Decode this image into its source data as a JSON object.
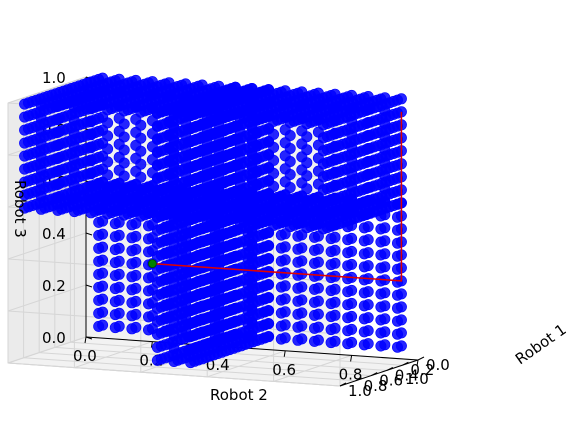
{
  "chart_data": {
    "type": "scatter3d",
    "axes": {
      "x": {
        "label": "Robot 1",
        "ticks": [
          "0.0",
          "0.2",
          "0.4",
          "0.6",
          "0.8",
          "1.0"
        ],
        "range": [
          0,
          1
        ]
      },
      "y": {
        "label": "Robot 2",
        "ticks": [
          "0.0",
          "0.2",
          "0.4",
          "0.6",
          "0.8",
          "1.0"
        ],
        "range": [
          0,
          1
        ]
      },
      "z": {
        "label": "Robot 3",
        "ticks": [
          "0.0",
          "0.2",
          "0.4",
          "0.6",
          "0.8",
          "1.0"
        ],
        "range": [
          0,
          1
        ]
      }
    },
    "grid": true,
    "obstacle_regions": [
      {
        "name": "",
        "color": "#0000ff",
        "r1": [
          0.0,
          1.0
        ],
        "r2": [
          0.05,
          0.95
        ],
        "r3": [
          0.6,
          1.0
        ]
      },
      {
        "name": "",
        "color": "#0000ff",
        "r1": [
          0.0,
          1.0
        ],
        "r2": [
          0.45,
          0.55
        ],
        "r3": [
          0.05,
          1.0
        ]
      },
      {
        "name": "",
        "color": "#0000ff",
        "r1": [
          0.0,
          0.05
        ],
        "r2": [
          0.05,
          0.95
        ],
        "r3": [
          0.05,
          0.6
        ]
      }
    ],
    "path": {
      "color": "#e00000",
      "points": [
        [
          0.0,
          0.2,
          0.3
        ],
        [
          0.0,
          0.45,
          0.3
        ],
        [
          0.0,
          0.95,
          0.3
        ],
        [
          0.0,
          0.95,
          0.95
        ]
      ]
    },
    "start": {
      "color": "#008000",
      "point": [
        0.0,
        0.2,
        0.3
      ]
    }
  }
}
